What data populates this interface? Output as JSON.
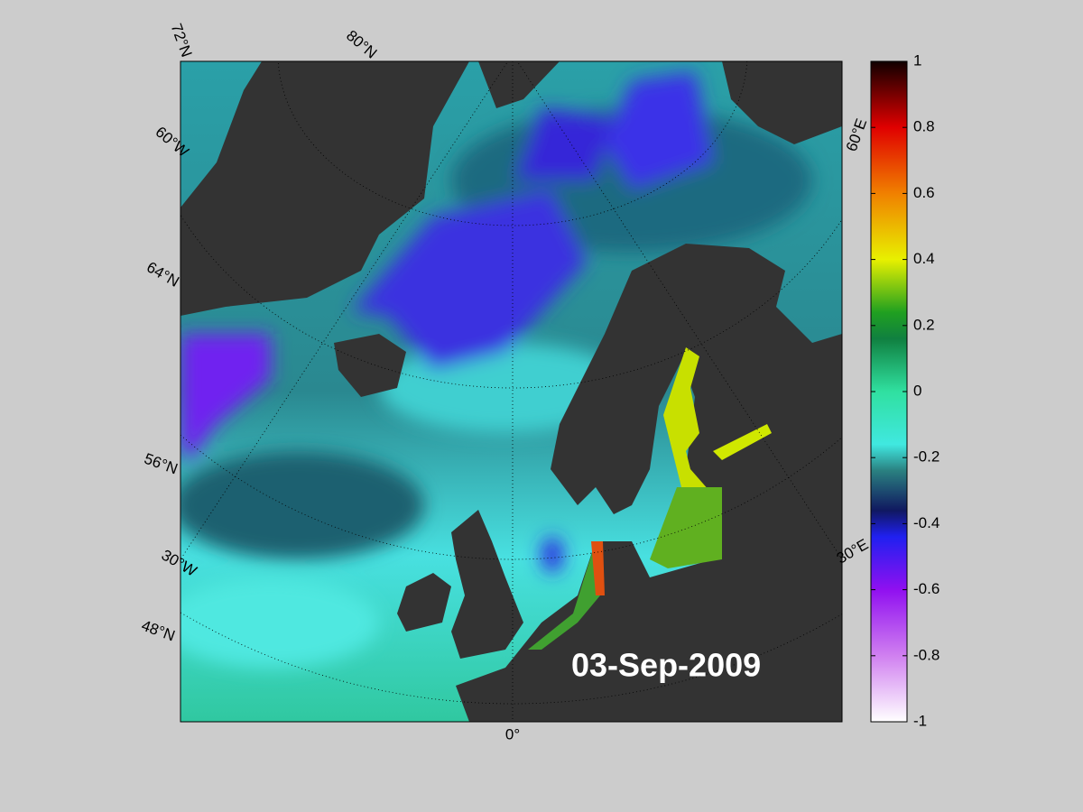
{
  "map": {
    "date_label": "03-Sep-2009",
    "graticule_labels": [
      "72°N",
      "80°N",
      "60°W",
      "64°N",
      "56°N",
      "30°W",
      "48°N",
      "0°",
      "30°E",
      "60°E"
    ]
  },
  "colorbar": {
    "lim": [
      -1,
      1
    ],
    "ticks": [
      1,
      0.8,
      0.6,
      0.4,
      0.2,
      0,
      -0.2,
      -0.4,
      -0.6,
      -0.8,
      -1
    ]
  }
}
